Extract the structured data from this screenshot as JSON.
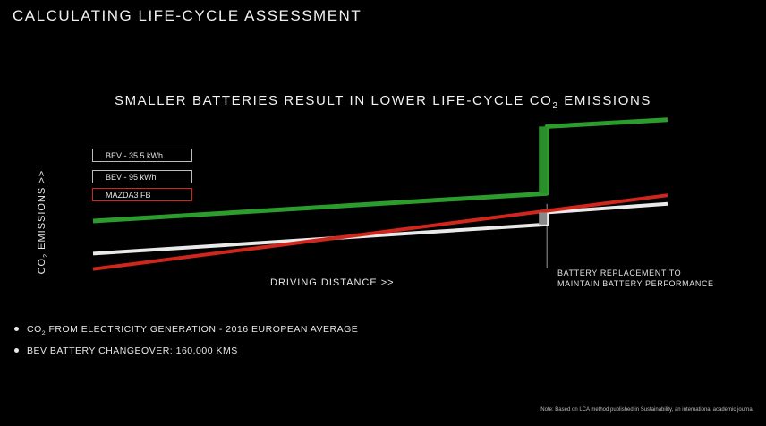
{
  "page_title": "CALCULATING LIFE-CYCLE ASSESSMENT",
  "chart_data": {
    "type": "line",
    "title": "SMALLER BATTERIES RESULT IN LOWER LIFE-CYCLE CO",
    "title_sub": "2",
    "title_end": " EMISSIONS",
    "xlabel": "DRIVING DISTANCE >>",
    "ylabel": "CO",
    "ylabel_sub": "2",
    "ylabel_end": " EMISSIONS >>",
    "axis_ticks_shown": false,
    "grid": false,
    "legend_position": "left",
    "x_domain": [
      0,
      1
    ],
    "y_domain": [
      0,
      1
    ],
    "battery_replacement_x": 0.79,
    "series": [
      {
        "name": "BEV - 35.5 kWh",
        "color": "#e9e9e9",
        "points": [
          [
            0,
            0.18
          ],
          [
            0.79,
            0.35
          ],
          [
            0.79,
            0.42
          ],
          [
            1,
            0.47
          ]
        ]
      },
      {
        "name": "BEV - 95 kWh",
        "color": "#2c9c2c",
        "points": [
          [
            0,
            0.37
          ],
          [
            0.79,
            0.53
          ],
          [
            0.79,
            0.92
          ],
          [
            1,
            0.96
          ]
        ]
      },
      {
        "name": "MAZDA3 FB",
        "color": "#d0261c",
        "points": [
          [
            0,
            0.09
          ],
          [
            1,
            0.52
          ]
        ]
      }
    ],
    "annotation": [
      "BATTERY REPLACEMENT TO",
      "MAINTAIN BATTERY PERFORMANCE"
    ]
  },
  "bullets": [
    {
      "text": "CO",
      "sub": "2",
      "rest": " FROM ELECTRICITY GENERATION - 2016 EUROPEAN AVERAGE"
    },
    {
      "text": "BEV BATTERY CHANGEOVER: 160,000 KMS",
      "sub": "",
      "rest": ""
    }
  ],
  "note": "Note: Based on LCA method published in Sustainability, an international academic journal"
}
